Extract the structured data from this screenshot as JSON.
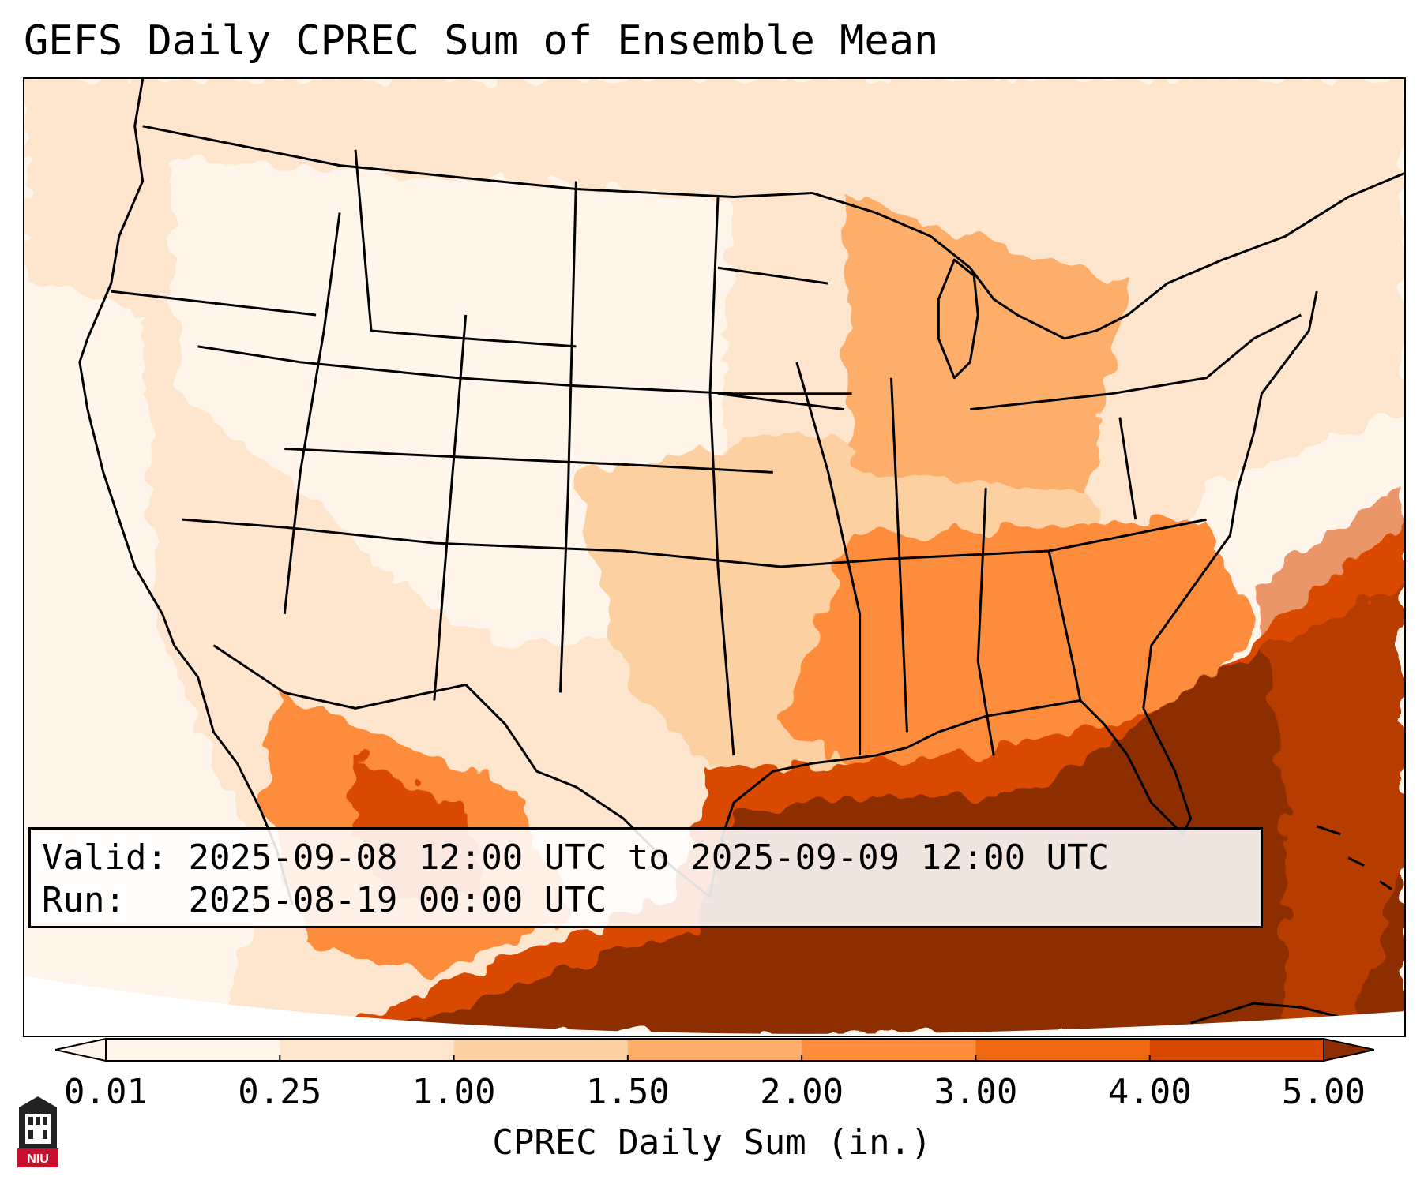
{
  "title": "GEFS Daily CPREC Sum of Ensemble Mean",
  "info": {
    "valid_label": "Valid:",
    "valid_value": "2025-09-08 12:00 UTC to 2025-09-09 12:00 UTC",
    "run_label": "Run:",
    "run_value": "2025-08-19 00:00 UTC"
  },
  "colorbar": {
    "label": "CPREC Daily Sum (in.)",
    "ticks": [
      "0.01",
      "0.25",
      "1.00",
      "1.50",
      "2.00",
      "3.00",
      "4.00",
      "5.00"
    ],
    "colors": [
      "#fff5eb",
      "#fee6ce",
      "#fdd0a2",
      "#fdae6b",
      "#fd8d3c",
      "#f16913",
      "#d94801",
      "#8c2d04"
    ],
    "extend": "both"
  },
  "logo": {
    "text": "NIU",
    "color": "#c8102e"
  }
}
